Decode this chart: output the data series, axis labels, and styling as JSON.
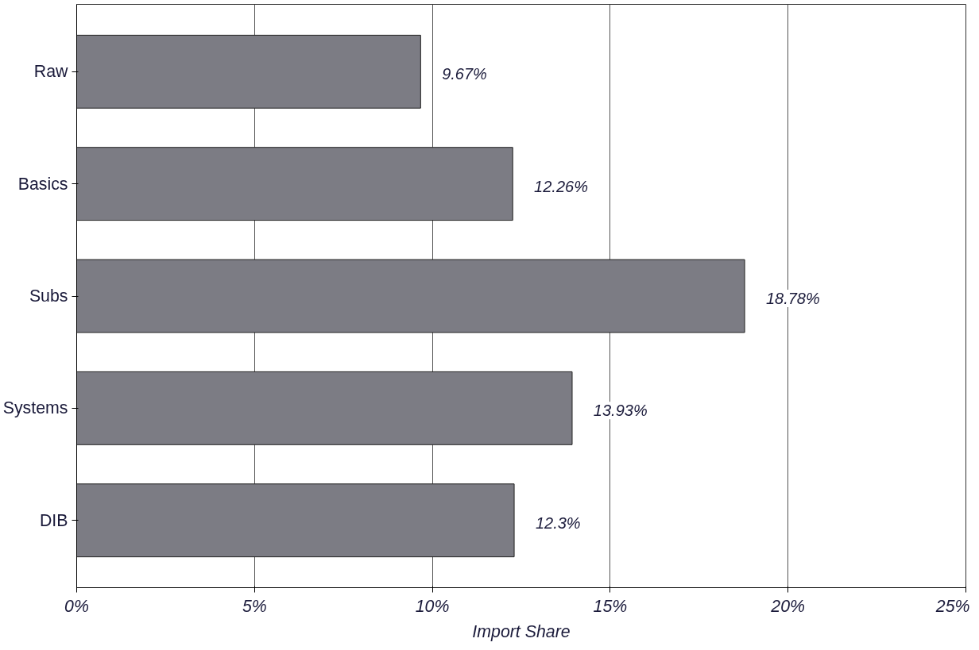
{
  "chart_data": {
    "type": "bar",
    "orientation": "horizontal",
    "xlabel": "Import Share",
    "categories": [
      "Raw",
      "Basics",
      "Subs",
      "Systems",
      "DIB"
    ],
    "values": [
      9.67,
      12.26,
      18.78,
      13.93,
      12.3
    ],
    "color": "#7c7c84",
    "value_labels": [
      "9.67%",
      "12.26%",
      "18.78%",
      "13.93%",
      "12.3%"
    ],
    "xlim": [
      0,
      25
    ],
    "xticks": [
      {
        "value": 0,
        "label": "0%"
      },
      {
        "value": 5,
        "label": "5%"
      },
      {
        "value": 10,
        "label": "10%"
      },
      {
        "value": 15,
        "label": "15%"
      },
      {
        "value": 20,
        "label": "20%"
      },
      {
        "value": 25,
        "label": "25%"
      }
    ],
    "grid": "x"
  }
}
